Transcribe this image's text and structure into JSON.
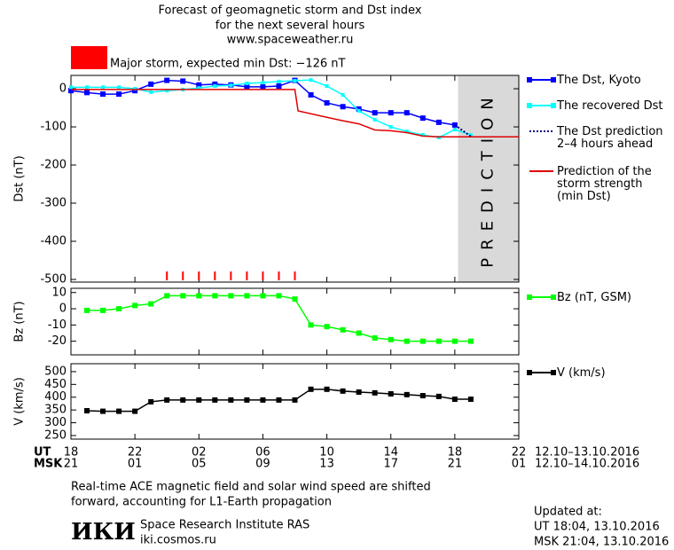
{
  "title": [
    "Forecast of geomagnetic storm and Dst index",
    "for the next several hours",
    "www.spaceweather.ru"
  ],
  "storm_alert": "Major storm, expected min Dst: −126 nT",
  "storm_color": "#ff0000",
  "chart_data": [
    {
      "type": "line",
      "ylabel": "Dst (nT)",
      "xlim": [
        0,
        28
      ],
      "ylim": [
        -507,
        35
      ],
      "yticks": [
        0,
        -100,
        -200,
        -300,
        -400,
        -500
      ],
      "prediction_label": "PREDICTION",
      "prediction_span": [
        24.2,
        28
      ],
      "prediction_color": "#d9d9d9",
      "storm_marks": [
        6,
        7,
        8,
        9,
        10,
        11,
        12,
        13,
        14
      ],
      "series": [
        {
          "name": "The Dst, Kyoto",
          "color": "#0000ff",
          "marker": "square",
          "x": [
            0,
            1,
            2,
            3,
            4,
            5,
            6,
            7,
            8,
            9,
            10,
            11,
            12,
            13,
            14,
            15,
            16,
            17,
            18,
            19,
            20,
            21,
            22,
            23,
            24
          ],
          "values": [
            -5,
            -10,
            -14,
            -14,
            -5,
            12,
            22,
            20,
            10,
            12,
            10,
            5,
            5,
            7,
            22,
            -16,
            -37,
            -47,
            -53,
            -63,
            -63,
            -63,
            -77,
            -88,
            -95
          ]
        },
        {
          "name": "The recovered Dst",
          "color": "#00ffff",
          "marker": "small",
          "x": [
            0,
            1,
            2,
            3,
            4,
            5,
            6,
            7,
            8,
            9,
            10,
            11,
            12,
            13,
            14,
            15,
            16,
            17,
            18,
            19,
            20,
            21,
            22,
            23,
            24,
            25
          ],
          "values": [
            4,
            4,
            4,
            4,
            0,
            -9,
            -5,
            -2,
            2,
            7,
            9,
            14,
            16,
            19,
            21,
            23,
            7,
            -16,
            -58,
            -81,
            -100,
            -112,
            -121,
            -128,
            -107,
            -121
          ]
        },
        {
          "name": "The Dst prediction\n2–4 hours ahead",
          "color": "#000080",
          "dash": "2,2",
          "x": [
            24,
            25
          ],
          "values": [
            -95,
            -125
          ]
        },
        {
          "name": "Prediction of the\nstorm strength\n(min Dst)",
          "color": "#e00000",
          "x": [
            0,
            14,
            14.2,
            16,
            17,
            18,
            19,
            20,
            21,
            22,
            23,
            28
          ],
          "values": [
            -2,
            -2,
            -58,
            -75,
            -84,
            -92,
            -108,
            -110,
            -115,
            -124,
            -126,
            -126
          ]
        }
      ]
    },
    {
      "type": "line",
      "ylabel": "Bz (nT)",
      "xlim": [
        0,
        28
      ],
      "ylim": [
        -28.4,
        12.6
      ],
      "yticks": [
        10,
        0,
        -10,
        -20
      ],
      "series": [
        {
          "name": "Bz (nT, GSM)",
          "color": "#00ff00",
          "marker": "square",
          "x": [
            1,
            2,
            3,
            4,
            5,
            6,
            7,
            8,
            9,
            10,
            11,
            12,
            13,
            14,
            15,
            16,
            17,
            18,
            19,
            20,
            21,
            22,
            23,
            24,
            25
          ],
          "values": [
            -1,
            -1,
            0,
            2,
            3,
            8,
            8,
            8,
            8,
            8,
            8,
            8,
            8,
            6,
            -10,
            -11,
            -13,
            -15,
            -18,
            -19,
            -20,
            -20,
            -20,
            -20,
            -20
          ]
        }
      ]
    },
    {
      "type": "line",
      "ylabel": "V (km/s)",
      "xlim": [
        0,
        28
      ],
      "ylim": [
        236,
        531
      ],
      "yticks": [
        500,
        450,
        400,
        350,
        300,
        250
      ],
      "series": [
        {
          "name": "V (km/s)",
          "color": "#000000",
          "marker": "square",
          "x": [
            1,
            2,
            3,
            4,
            5,
            6,
            7,
            8,
            9,
            10,
            11,
            12,
            13,
            14,
            15,
            16,
            17,
            18,
            19,
            20,
            21,
            22,
            23,
            24,
            25
          ],
          "values": [
            347,
            345,
            345,
            345,
            382,
            389,
            389,
            389,
            389,
            389,
            389,
            389,
            389,
            389,
            431,
            431,
            424,
            420,
            417,
            413,
            410,
            406,
            403,
            392,
            392
          ]
        }
      ]
    }
  ],
  "x_axis": {
    "rows": [
      {
        "name": "UT",
        "date": "12.10–13.10.2016",
        "ticks": [
          {
            "value": 0,
            "label": "18"
          },
          {
            "value": 4,
            "label": "22"
          },
          {
            "value": 8,
            "label": "02"
          },
          {
            "value": 12,
            "label": "06"
          },
          {
            "value": 16,
            "label": "10"
          },
          {
            "value": 20,
            "label": "14"
          },
          {
            "value": 24,
            "label": "18"
          },
          {
            "value": 28,
            "label": "22"
          }
        ]
      },
      {
        "name": "MSK",
        "date": "12.10–14.10.2016",
        "ticks": [
          {
            "value": 0,
            "label": "21"
          },
          {
            "value": 4,
            "label": "01"
          },
          {
            "value": 8,
            "label": "05"
          },
          {
            "value": 12,
            "label": "09"
          },
          {
            "value": 16,
            "label": "13"
          },
          {
            "value": 20,
            "label": "17"
          },
          {
            "value": 24,
            "label": "21"
          },
          {
            "value": 28,
            "label": "01"
          }
        ]
      }
    ]
  },
  "note": [
    "Real-time ACE magnetic field and solar wind speed are shifted",
    "forward, accounting for L1-Earth propagation"
  ],
  "institute": {
    "logo": "ИКИ",
    "name": "Space Research Institute RAS",
    "url": "iki.cosmos.ru"
  },
  "updated": [
    "Updated at:",
    "UT   18:04, 13.10.2016",
    "MSK 21:04, 13.10.2016"
  ]
}
